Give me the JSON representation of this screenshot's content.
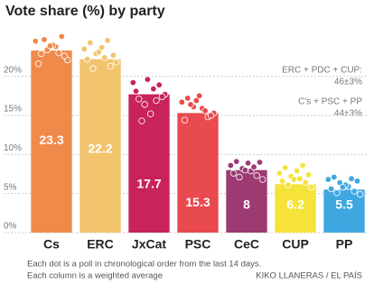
{
  "chart_data": {
    "type": "bar",
    "title": "Vote share (%) by party",
    "categories": [
      "Cs",
      "ERC",
      "JxCat",
      "PSC",
      "CeC",
      "CUP",
      "PP"
    ],
    "values": [
      23.3,
      22.2,
      17.7,
      15.3,
      8,
      6.2,
      5.5
    ],
    "colors": [
      "#f08a4b",
      "#f2c46d",
      "#c8235a",
      "#e84a4f",
      "#9c3a72",
      "#f5e23a",
      "#3fa7e0"
    ],
    "polls": [
      [
        24.5,
        23.8,
        22.9,
        25.1,
        23.4,
        22.1,
        24.0,
        21.6,
        23.0,
        24.7,
        22.6,
        23.9
      ],
      [
        23.5,
        22.4,
        24.3,
        21.3,
        22.9,
        21.8,
        23.7,
        22.2,
        24.6,
        21.0,
        22.7,
        23.1
      ],
      [
        19.2,
        18.4,
        17.1,
        18.9,
        16.4,
        17.7,
        15.2,
        18.1,
        16.9,
        14.3,
        17.4,
        19.6
      ],
      [
        16.7,
        15.9,
        17.2,
        14.8,
        16.1,
        15.3,
        17.5,
        14.4,
        15.6,
        16.4,
        15.0,
        16.9
      ],
      [
        8.6,
        7.9,
        9.1,
        7.3,
        8.2,
        6.8,
        8.9,
        7.6,
        8.4,
        7.1,
        9.0,
        8.0
      ],
      [
        7.6,
        6.9,
        8.3,
        6.4,
        7.2,
        5.8,
        7.9,
        6.6,
        8.6,
        6.1,
        7.4,
        6.8
      ],
      [
        6.8,
        5.9,
        7.1,
        5.3,
        6.4,
        4.9,
        6.1,
        5.6,
        6.9,
        5.1,
        6.6,
        5.8
      ]
    ],
    "ylim": [
      0,
      22.5
    ],
    "yticks": [
      {
        "value": 0,
        "label": "0%"
      },
      {
        "value": 5,
        "label": "5%"
      },
      {
        "value": 10,
        "label": "10%"
      },
      {
        "value": 15,
        "label": "15%"
      },
      {
        "value": 20,
        "label": "20%"
      }
    ],
    "grid": true,
    "annotations": [
      "ERC + PDC + CUP:",
      "46±3%",
      "C's + PSC + PP",
      "44±3%"
    ],
    "notes": [
      "Each dot is a poll in chronological order from the last 14 days.",
      "Each column is a weighted average"
    ],
    "source": "KIKO LLANERAS / EL PAÍS"
  }
}
